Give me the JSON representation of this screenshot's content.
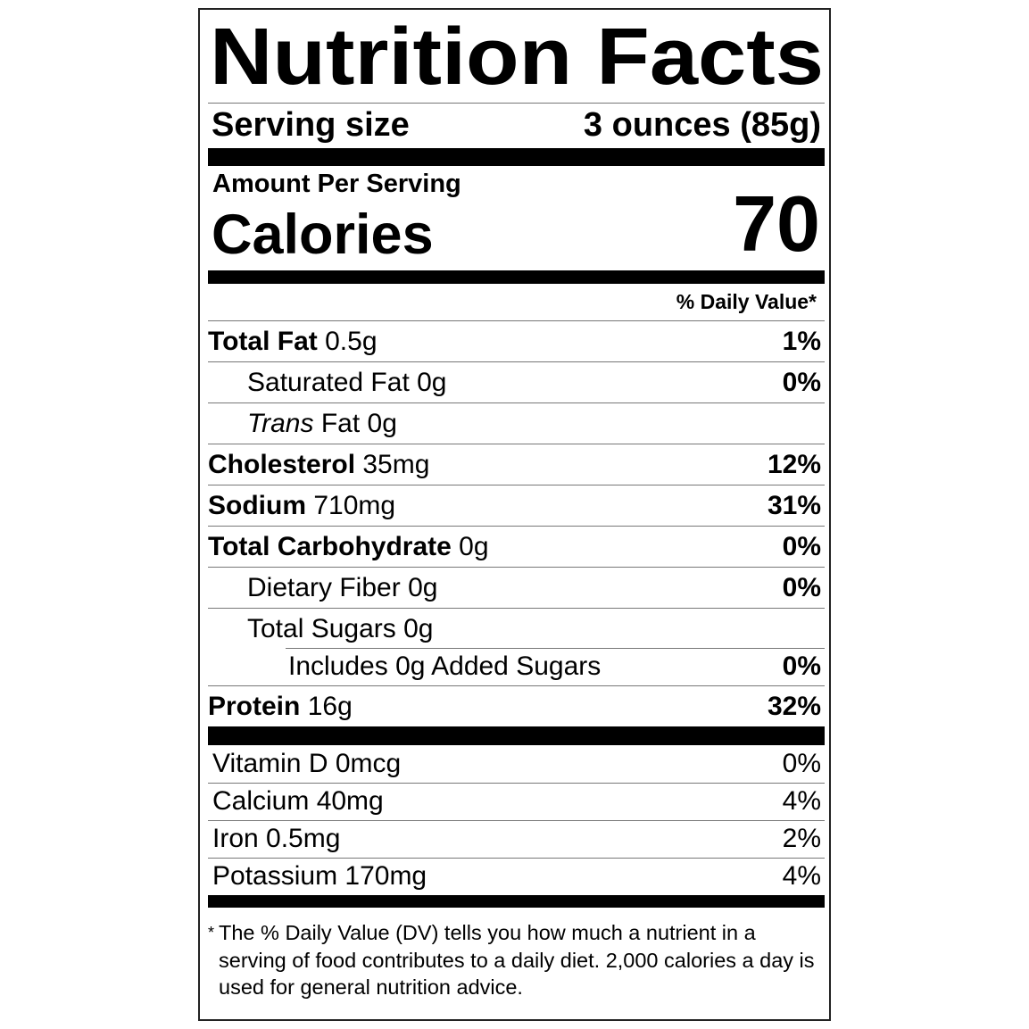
{
  "title": "Nutrition Facts",
  "serving": {
    "label": "Serving size",
    "value": "3 ounces (85g)"
  },
  "amount_per_serving": "Amount Per Serving",
  "calories": {
    "label": "Calories",
    "value": "70"
  },
  "daily_value_header": "% Daily Value*",
  "nutrients": [
    {
      "name": "Total Fat",
      "amount": "0.5g",
      "dv": "1%"
    },
    {
      "name": "Saturated Fat",
      "amount": "0g",
      "dv": "0%"
    },
    {
      "name": "Trans",
      "name_rest": "Fat",
      "amount": "0g",
      "dv": ""
    },
    {
      "name": "Cholesterol",
      "amount": "35mg",
      "dv": "12%"
    },
    {
      "name": "Sodium",
      "amount": "710mg",
      "dv": "31%"
    },
    {
      "name": "Total Carbohydrate",
      "amount": "0g",
      "dv": "0%"
    },
    {
      "name": "Dietary Fiber",
      "amount": "0g",
      "dv": "0%"
    },
    {
      "name": "Total Sugars",
      "amount": "0g",
      "dv": ""
    },
    {
      "name": "Includes 0g Added Sugars",
      "amount": "",
      "dv": "0%"
    },
    {
      "name": "Protein",
      "amount": "16g",
      "dv": "32%"
    }
  ],
  "vitamins": [
    {
      "label": "Vitamin D 0mcg",
      "dv": "0%"
    },
    {
      "label": "Calcium 40mg",
      "dv": "4%"
    },
    {
      "label": "Iron 0.5mg",
      "dv": "2%"
    },
    {
      "label": "Potassium 170mg",
      "dv": "4%"
    }
  ],
  "footnote": {
    "marker": "*",
    "text": "The % Daily Value (DV) tells you how much a nutrient in a serving of food contributes to a daily diet. 2,000 calories a day is used for general nutrition advice."
  }
}
